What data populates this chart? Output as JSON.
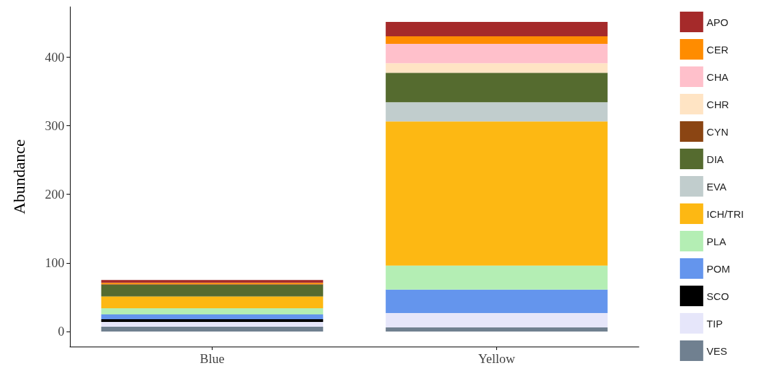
{
  "chart_data": {
    "type": "bar",
    "stacked": true,
    "ylabel": "Abundance",
    "categories": [
      "Blue",
      "Yellow"
    ],
    "ylim": [
      -22,
      473
    ],
    "yticks": [
      0,
      100,
      200,
      300,
      400
    ],
    "grid": false,
    "legend": "right",
    "series": [
      {
        "name": "VES",
        "color": "#708090",
        "values": [
          7,
          6
        ]
      },
      {
        "name": "TIP",
        "color": "#e6e6fa",
        "values": [
          7,
          21
        ]
      },
      {
        "name": "SCO",
        "color": "#000000",
        "values": [
          4,
          0
        ]
      },
      {
        "name": "POM",
        "color": "#6495ed",
        "values": [
          7,
          34
        ]
      },
      {
        "name": "PLA",
        "color": "#b4eeb4",
        "values": [
          9,
          35
        ]
      },
      {
        "name": "ICH/TRI",
        "color": "#fdb813",
        "values": [
          17,
          210
        ]
      },
      {
        "name": "EVA",
        "color": "#c1cdcd",
        "values": [
          0,
          28
        ]
      },
      {
        "name": "DIA",
        "color": "#556b2f",
        "values": [
          17,
          43
        ]
      },
      {
        "name": "CYN",
        "color": "#8b4513",
        "values": [
          1,
          0
        ]
      },
      {
        "name": "CHR",
        "color": "#ffe4c4",
        "values": [
          0,
          14
        ]
      },
      {
        "name": "CHA",
        "color": "#ffc0cb",
        "values": [
          0,
          28
        ]
      },
      {
        "name": "CER",
        "color": "#ff8c00",
        "values": [
          2,
          11
        ]
      },
      {
        "name": "APO",
        "color": "#a52a2a",
        "values": [
          4,
          21
        ]
      }
    ]
  }
}
